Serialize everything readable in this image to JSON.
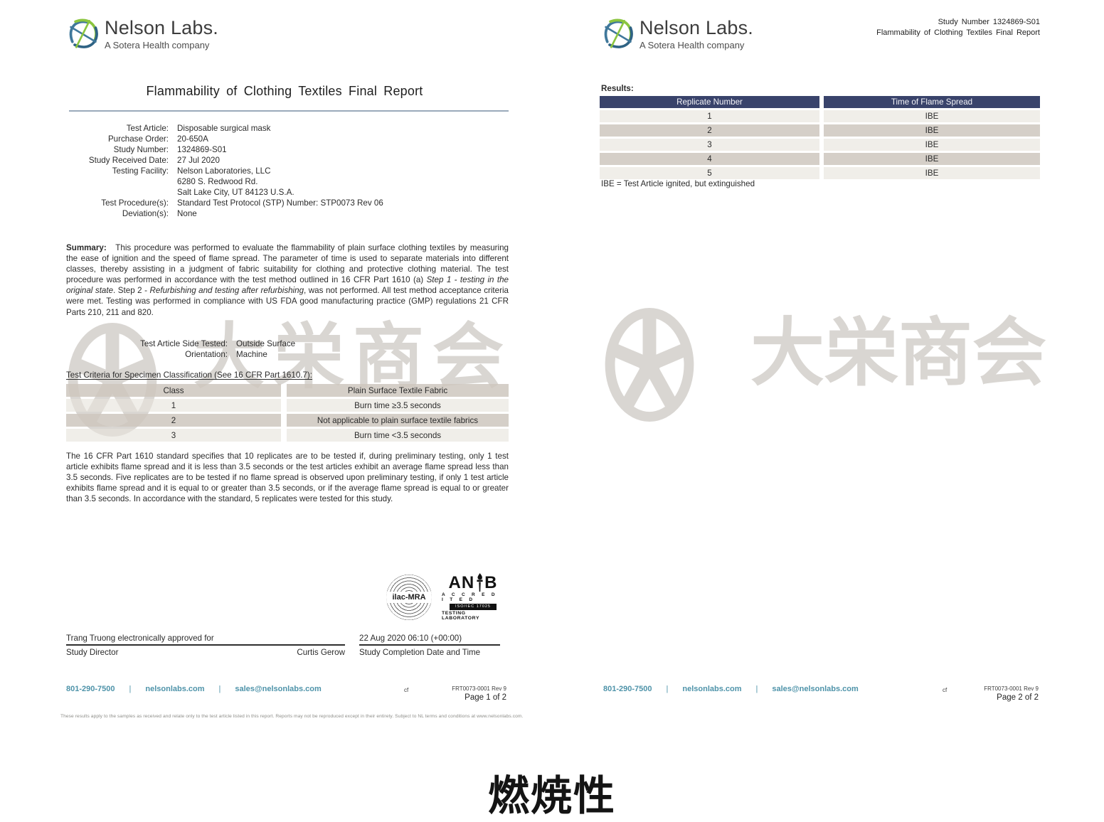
{
  "colors": {
    "brand-green": "#8bc53f",
    "brand-blue": "#40789b",
    "brand-blue-dark": "#2f6384",
    "ink": "#2b2b2b",
    "navy": "#39436b",
    "teal": "#4e93a9",
    "watermark": "#d9d6d2",
    "rule": "#9aaabb"
  },
  "logo": {
    "name": "Nelson Labs.",
    "tagline": "A Sotera Health company"
  },
  "watermark": {
    "text": "大栄商会"
  },
  "caption": "燃焼性",
  "footer": {
    "phone": "801-290-7500",
    "sep": "|",
    "web": "nelsonlabs.com",
    "email": "sales@nelsonlabs.com",
    "cf": "cf",
    "doc": "FRT0073-0001  Rev 9",
    "fineprint": "These results apply to the samples as received and relate only to the test article listed in this report.  Reports may not be reproduced except in their entirety.  Subject to NL terms and conditions at www.nelsonlabs.com."
  },
  "page1": {
    "title": "Flammability of Clothing Textiles Final Report",
    "details": [
      {
        "label": "Test Article:",
        "value": "Disposable surgical mask"
      },
      {
        "label": "Purchase Order:",
        "value": "20-650A"
      },
      {
        "label": "Study Number:",
        "value": "1324869-S01"
      },
      {
        "label": "Study Received Date:",
        "value": "27 Jul 2020"
      },
      {
        "label": "Testing Facility:",
        "value": "Nelson Laboratories, LLC\n6280 S. Redwood Rd.\nSalt Lake City, UT 84123 U.S.A."
      },
      {
        "label": "Test Procedure(s):",
        "value": "Standard Test Protocol (STP) Number:  STP0073 Rev 06"
      },
      {
        "label": "Deviation(s):",
        "value": "None"
      }
    ],
    "summary": {
      "label": "Summary:",
      "p1": "This procedure was performed to evaluate the flammability of plain surface clothing textiles by measuring the ease of ignition and the speed of flame spread.  The parameter of time is used to separate materials into different classes, thereby assisting in a judgment of fabric suitability for clothing and protective clothing material.  The test procedure was performed in accordance with the test method outlined in 16 CFR Part 1610 (a) ",
      "i1": "Step 1 - testing in the original state",
      "p2": ". Step 2 - ",
      "i2": "Refurbishing and testing after refurbishing",
      "p3": ", was not performed.  All test method acceptance criteria were met.  Testing was performed in compliance with US FDA good manufacturing practice (GMP) regulations 21 CFR Parts 210, 211 and 820."
    },
    "side_tested": [
      {
        "label": "Test Article Side Tested:",
        "value": "Outside Surface"
      },
      {
        "label": "Orientation:",
        "value": "Machine"
      }
    ],
    "criteria_heading": "Test Criteria for Specimen Classification (See 16 CFR Part 1610.7):",
    "criteria_table": {
      "headers": [
        "Class",
        "Plain Surface Textile Fabric"
      ],
      "rows": [
        [
          "1",
          "Burn time ≥3.5 seconds"
        ],
        [
          "2",
          "Not applicable to plain surface textile fabrics"
        ],
        [
          "3",
          "Burn time <3.5 seconds"
        ]
      ]
    },
    "standard_paragraph": "The 16 CFR Part 1610 standard specifies that 10 replicates are to be tested if, during preliminary testing, only 1 test article exhibits flame spread and it is less than 3.5 seconds or the test articles exhibit an average flame spread less than 3.5 seconds.  Five replicates are to be tested if no flame spread is observed upon preliminary testing, if only 1 test article exhibits flame spread and it is equal to or greater than 3.5 seconds, or if the average flame spread is equal to or greater than 3.5 seconds.  In accordance with the standard, 5 replicates were tested for this study.",
    "seals": {
      "ilac": "ilac-MRA",
      "anab_left": "AN",
      "anab_right": "B",
      "anab_accredited": "A C C R E D I T E D",
      "anab_iso": "ISO/IEC 17025",
      "anab_lab": "TESTING LABORATORY"
    },
    "signature": {
      "approved_line": "Trang Truong electronically approved for",
      "role": "Study Director",
      "approver": "Curtis Gerow",
      "datetime": "22 Aug 2020 06:10 (+00:00)",
      "datetime_label": "Study Completion Date and Time"
    },
    "footer_page": "Page 1 of 2"
  },
  "page2": {
    "header_study": "Study Number 1324869-S01",
    "header_title": "Flammability of Clothing Textiles Final Report",
    "results_label": "Results:",
    "results_table": {
      "headers": [
        "Replicate Number",
        "Time of Flame Spread"
      ],
      "rows": [
        [
          "1",
          "IBE"
        ],
        [
          "2",
          "IBE"
        ],
        [
          "3",
          "IBE"
        ],
        [
          "4",
          "IBE"
        ],
        [
          "5",
          "IBE"
        ]
      ]
    },
    "ibe_note": "IBE = Test Article ignited, but extinguished",
    "footer_page": "Page 2 of 2"
  }
}
